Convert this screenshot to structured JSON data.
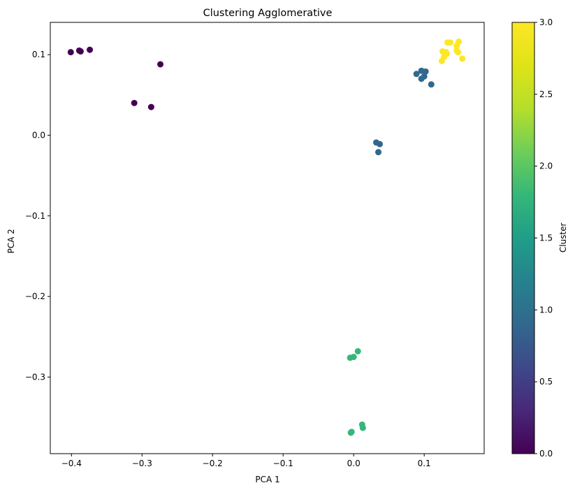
{
  "chart_data": {
    "type": "scatter",
    "title": "Clustering Agglomerative",
    "xlabel": "PCA 1",
    "ylabel": "PCA 2",
    "xlim": [
      -0.43,
      0.185
    ],
    "ylim": [
      -0.395,
      0.14
    ],
    "x_ticks": [
      -0.4,
      -0.3,
      -0.2,
      -0.1,
      0.0,
      0.1
    ],
    "x_tick_labels": [
      "−0.4",
      "−0.3",
      "−0.2",
      "−0.1",
      "0.0",
      "0.1"
    ],
    "y_ticks": [
      0.1,
      0.0,
      -0.1,
      -0.2,
      -0.3
    ],
    "y_tick_labels": [
      "0.1",
      "0.0",
      "−0.1",
      "−0.2",
      "−0.3"
    ],
    "grid": false,
    "colorbar": {
      "label": "Cluster",
      "range": [
        0,
        3
      ],
      "ticks": [
        0.0,
        0.5,
        1.0,
        1.5,
        2.0,
        2.5,
        3.0
      ],
      "tick_labels": [
        "0.0",
        "0.5",
        "1.0",
        "1.5",
        "2.0",
        "2.5",
        "3.0"
      ],
      "colormap": "viridis"
    },
    "series": [
      {
        "cluster": 0,
        "color": "#440154",
        "points": [
          [
            -0.401,
            0.103
          ],
          [
            -0.389,
            0.105
          ],
          [
            -0.387,
            0.104
          ],
          [
            -0.374,
            0.106
          ],
          [
            -0.274,
            0.088
          ],
          [
            -0.311,
            0.04
          ],
          [
            -0.287,
            0.035
          ]
        ]
      },
      {
        "cluster": 1,
        "color": "#31688e",
        "points": [
          [
            0.089,
            0.076
          ],
          [
            0.096,
            0.08
          ],
          [
            0.102,
            0.079
          ],
          [
            0.1,
            0.073
          ],
          [
            0.096,
            0.07
          ],
          [
            0.11,
            0.063
          ],
          [
            0.032,
            -0.009
          ],
          [
            0.037,
            -0.011
          ],
          [
            0.035,
            -0.021
          ]
        ]
      },
      {
        "cluster": 2,
        "color": "#35b779",
        "points": [
          [
            0.006,
            -0.268
          ],
          [
            0.0,
            -0.275
          ],
          [
            -0.005,
            -0.276
          ],
          [
            0.012,
            -0.359
          ],
          [
            0.013,
            -0.363
          ],
          [
            -0.004,
            -0.369
          ],
          [
            -0.003,
            -0.368
          ]
        ]
      },
      {
        "cluster": 3,
        "color": "#fde725",
        "points": [
          [
            0.133,
            0.115
          ],
          [
            0.137,
            0.115
          ],
          [
            0.149,
            0.116
          ],
          [
            0.146,
            0.111
          ],
          [
            0.126,
            0.104
          ],
          [
            0.131,
            0.103
          ],
          [
            0.146,
            0.105
          ],
          [
            0.148,
            0.103
          ],
          [
            0.128,
            0.097
          ],
          [
            0.154,
            0.095
          ],
          [
            0.125,
            0.092
          ],
          [
            0.132,
            0.101
          ]
        ]
      }
    ]
  }
}
